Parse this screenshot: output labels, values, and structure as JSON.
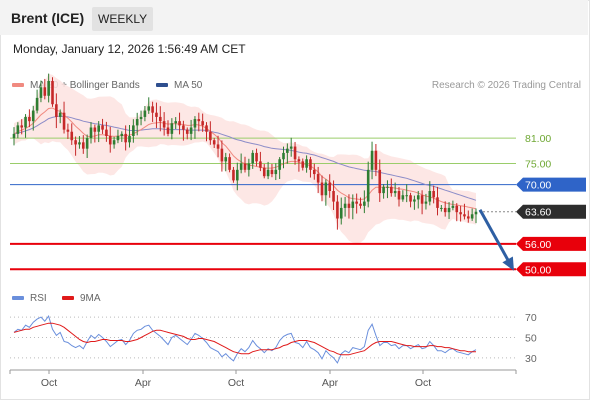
{
  "header": {
    "title": "Brent (ICE)",
    "timeframe_label": "WEEKLY",
    "datetime": "Monday, January 12, 2026 1:56:49 AM CET"
  },
  "legend": {
    "ma20_label": "MA 20 + Bollinger Bands",
    "ma50_label": "MA 50",
    "copyright": "Research © 2026 Trading Central",
    "rsi_label": "RSI",
    "rsi_ma_label": "9MA"
  },
  "colors": {
    "up": "#2e7d32",
    "down": "#c62828",
    "ma20": "#f08a80",
    "bollinger": "#fde3e1",
    "ma50": "#8c8cc8",
    "resistance": "#9acd6a",
    "pivot": "#2f64c8",
    "support": "#e8000b",
    "arrow": "#2e5fa3",
    "rsi": "#6a8fdc",
    "rsi_ma": "#e01a1a"
  },
  "chart_data": [
    {
      "type": "candlestick",
      "title": "Brent (ICE)",
      "xlabel": "",
      "ylabel": "",
      "x_ticks": [
        "Oct",
        "Apr",
        "Oct",
        "Apr",
        "Oct"
      ],
      "y_range": [
        47,
        90
      ],
      "last_price": 63.6,
      "levels": [
        {
          "value": 81.0,
          "label": "81.00",
          "kind": "resistance"
        },
        {
          "value": 75.0,
          "label": "75.00",
          "kind": "resistance"
        },
        {
          "value": 70.0,
          "label": "70.00",
          "kind": "pivot"
        },
        {
          "value": 63.6,
          "label": "63.60",
          "kind": "last"
        },
        {
          "value": 56.0,
          "label": "56.00",
          "kind": "support"
        },
        {
          "value": 50.0,
          "label": "50.00",
          "kind": "support"
        }
      ],
      "series": [
        {
          "name": "MA 20 + Bollinger Bands"
        },
        {
          "name": "MA 50"
        }
      ],
      "close": [
        82.0,
        84.0,
        83.5,
        86.0,
        85.0,
        87.5,
        90.5,
        93.0,
        91.0,
        94.5,
        89.0,
        86.0,
        87.0,
        83.0,
        82.5,
        80.5,
        79.5,
        80.0,
        78.5,
        81.0,
        83.5,
        82.5,
        84.0,
        83.0,
        81.5,
        79.5,
        80.5,
        81.5,
        82.0,
        80.0,
        81.5,
        84.0,
        85.5,
        86.0,
        87.5,
        88.5,
        87.0,
        86.0,
        85.0,
        83.5,
        82.0,
        84.5,
        85.0,
        84.0,
        83.0,
        82.0,
        83.5,
        85.5,
        85.0,
        84.0,
        82.5,
        80.5,
        79.5,
        78.5,
        75.5,
        76.5,
        73.5,
        71.0,
        73.5,
        75.0,
        73.5,
        75.0,
        77.5,
        75.5,
        74.0,
        72.0,
        73.5,
        72.5,
        73.5,
        76.0,
        77.5,
        78.5,
        79.0,
        76.0,
        75.5,
        74.0,
        76.0,
        73.5,
        72.5,
        70.5,
        67.5,
        70.5,
        68.5,
        66.0,
        62.0,
        64.5,
        65.5,
        64.5,
        66.0,
        65.5,
        65.0,
        66.0,
        73.5,
        78.0,
        73.5,
        68.0,
        69.5,
        69.5,
        68.0,
        68.5,
        66.5,
        67.5,
        67.5,
        66.0,
        66.5,
        67.5,
        65.5,
        66.0,
        68.5,
        67.0,
        64.5,
        64.5,
        63.5,
        64.5,
        65.0,
        63.5,
        63.0,
        62.5,
        62.0,
        63.0,
        63.6
      ],
      "ma20": [
        82.0,
        82.5,
        82.9,
        83.3,
        83.8,
        84.5,
        85.5,
        86.5,
        87.2,
        88.0,
        88.1,
        87.6,
        87.3,
        86.4,
        85.7,
        84.8,
        83.8,
        83.0,
        82.1,
        81.4,
        81.4,
        81.5,
        81.8,
        81.8,
        81.7,
        81.5,
        81.4,
        81.5,
        81.6,
        81.6,
        81.7,
        82.0,
        82.5,
        83.0,
        83.6,
        84.2,
        84.5,
        84.6,
        84.7,
        84.5,
        84.3,
        84.4,
        84.4,
        84.3,
        84.2,
        84.0,
        84.0,
        84.2,
        84.1,
        83.8,
        83.3,
        82.6,
        81.9,
        81.1,
        79.9,
        79.1,
        78.0,
        76.8,
        76.0,
        75.4,
        74.9,
        74.6,
        74.5,
        74.3,
        74.1,
        73.9,
        73.9,
        73.9,
        74.1,
        74.5,
        74.9,
        75.3,
        75.5,
        75.5,
        75.3,
        74.9,
        74.8,
        74.4,
        73.8,
        73.0,
        71.9,
        71.3,
        70.6,
        69.7,
        68.7,
        68.0,
        67.5,
        66.9,
        66.7,
        66.6,
        66.5,
        66.6,
        67.5,
        68.7,
        69.4,
        69.4,
        69.4,
        69.4,
        69.3,
        69.2,
        69.0,
        68.9,
        68.7,
        68.5,
        68.3,
        68.0,
        67.6,
        67.3,
        67.1,
        66.8,
        66.4,
        66.0,
        65.7,
        65.5,
        65.3,
        65.2,
        65.0,
        64.9,
        64.7,
        64.5,
        64.3
      ],
      "ma50": [
        82.0,
        82.2,
        82.4,
        82.7,
        83.0,
        83.4,
        83.9,
        84.5,
        85.0,
        85.6,
        85.9,
        86.1,
        86.2,
        86.1,
        86.0,
        85.8,
        85.5,
        85.3,
        85.0,
        84.8,
        84.6,
        84.4,
        84.3,
        84.1,
        84.0,
        83.8,
        83.6,
        83.4,
        83.2,
        83.0,
        82.8,
        82.8,
        82.8,
        82.9,
        83.0,
        83.1,
        83.2,
        83.2,
        83.2,
        83.1,
        83.0,
        83.0,
        83.0,
        83.0,
        83.0,
        82.9,
        82.9,
        82.9,
        82.9,
        82.9,
        82.8,
        82.6,
        82.4,
        82.2,
        81.9,
        81.6,
        81.3,
        80.9,
        80.6,
        80.4,
        80.1,
        79.9,
        79.7,
        79.5,
        79.3,
        79.0,
        78.8,
        78.6,
        78.5,
        78.4,
        78.3,
        78.2,
        78.1,
        77.9,
        77.7,
        77.5,
        77.4,
        77.2,
        77.0,
        76.7,
        76.4,
        76.1,
        75.8,
        75.5,
        75.1,
        74.8,
        74.5,
        74.2,
        74.0,
        73.8,
        73.6,
        73.4,
        73.3,
        73.2,
        73.1,
        72.9,
        72.7,
        72.5,
        72.3,
        72.1,
        71.9,
        71.7,
        71.5,
        71.2,
        70.9,
        70.6,
        70.3,
        70.0,
        69.8,
        69.6,
        69.3,
        69.0,
        68.7,
        68.4,
        68.1,
        67.8,
        67.5,
        67.2,
        66.9,
        66.6,
        66.3
      ],
      "rsi": [
        55,
        58,
        57,
        62,
        60,
        65,
        68,
        70,
        66,
        71,
        58,
        52,
        55,
        46,
        45,
        42,
        40,
        42,
        39,
        46,
        52,
        49,
        53,
        50,
        46,
        41,
        44,
        47,
        48,
        43,
        47,
        54,
        57,
        58,
        61,
        62,
        57,
        54,
        51,
        47,
        43,
        50,
        52,
        49,
        46,
        43,
        48,
        54,
        52,
        49,
        45,
        40,
        38,
        36,
        31,
        34,
        30,
        27,
        34,
        39,
        36,
        40,
        47,
        42,
        39,
        35,
        39,
        37,
        40,
        47,
        51,
        53,
        54,
        45,
        44,
        40,
        46,
        40,
        38,
        35,
        29,
        37,
        33,
        30,
        25,
        34,
        37,
        35,
        40,
        39,
        38,
        41,
        57,
        63,
        52,
        42,
        45,
        45,
        42,
        43,
        39,
        42,
        42,
        39,
        41,
        43,
        39,
        40,
        46,
        42,
        37,
        37,
        35,
        38,
        39,
        36,
        35,
        34,
        33,
        36,
        38
      ],
      "rsi_ma": [
        55,
        56,
        57,
        58,
        58,
        60,
        61,
        62,
        63,
        64,
        64,
        63,
        62,
        60,
        57,
        54,
        51,
        48,
        46,
        45,
        46,
        46,
        47,
        48,
        48,
        47,
        47,
        47,
        47,
        46,
        46,
        47,
        48,
        50,
        52,
        54,
        56,
        57,
        57,
        56,
        55,
        54,
        53,
        52,
        51,
        49,
        48,
        48,
        49,
        49,
        48,
        47,
        46,
        44,
        42,
        40,
        38,
        36,
        35,
        34,
        34,
        34,
        36,
        37,
        38,
        38,
        38,
        38,
        39,
        40,
        42,
        43,
        45,
        46,
        47,
        47,
        47,
        46,
        45,
        43,
        41,
        39,
        37,
        36,
        34,
        33,
        33,
        33,
        34,
        35,
        36,
        37,
        40,
        43,
        45,
        46,
        46,
        46,
        46,
        45,
        44,
        43,
        42,
        42,
        41,
        41,
        41,
        41,
        42,
        42,
        41,
        41,
        40,
        40,
        39,
        38,
        37,
        37,
        36,
        36,
        36
      ]
    },
    {
      "type": "line",
      "title": "RSI",
      "y_range": [
        20,
        75
      ],
      "y_ticks": [
        70,
        50,
        30
      ],
      "series": [
        {
          "name": "RSI"
        },
        {
          "name": "9MA"
        }
      ]
    }
  ]
}
